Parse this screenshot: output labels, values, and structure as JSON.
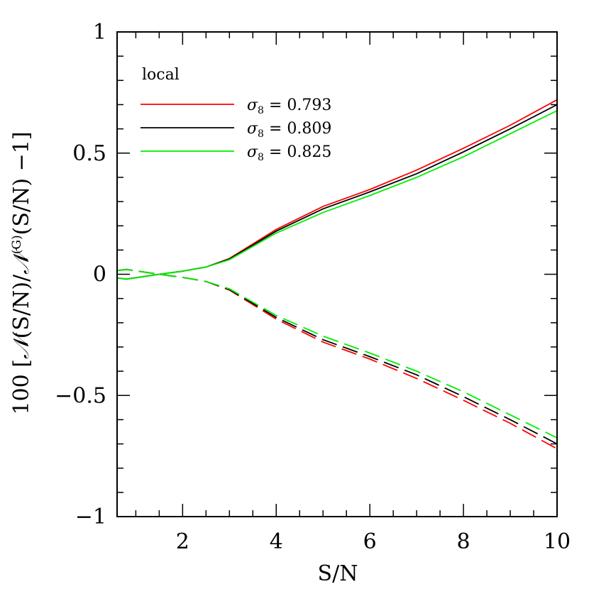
{
  "chart_data": {
    "type": "line",
    "xlabel": "S/N",
    "ylabel": {
      "prefix": "100  [",
      "n1": "𝒩",
      "mid1": "(S/N)/",
      "n2": "𝒩",
      "sup": "(G)",
      "mid2": "(S/N)  −1]"
    },
    "xlim": [
      0.6,
      10
    ],
    "ylim": [
      -1,
      1
    ],
    "x_ticks": [
      2,
      4,
      6,
      8,
      10
    ],
    "x_tick_labels": [
      "2",
      "4",
      "6",
      "8",
      "10"
    ],
    "y_ticks": [
      -1,
      -0.5,
      0,
      0.5,
      1
    ],
    "y_tick_labels": [
      "−1",
      "−0.5",
      "0",
      "0.5",
      "1"
    ],
    "legend": {
      "title": "local",
      "symbol": "σ",
      "subscript": "8",
      "equals": "=",
      "placement": "top-left"
    },
    "series": [
      {
        "name": "0.793",
        "color": "#ff0000",
        "x": [
          0.6,
          0.8,
          1.5,
          2,
          2.5,
          3,
          4,
          5,
          6,
          7,
          8,
          9,
          10
        ],
        "solid": [
          -0.015,
          -0.02,
          0.0,
          0.013,
          0.03,
          0.065,
          0.185,
          0.28,
          0.35,
          0.43,
          0.52,
          0.615,
          0.72
        ],
        "dashed": [
          0.015,
          0.02,
          0.0,
          -0.013,
          -0.03,
          -0.065,
          -0.185,
          -0.28,
          -0.35,
          -0.43,
          -0.52,
          -0.615,
          -0.72
        ]
      },
      {
        "name": "0.809",
        "color": "#000000",
        "x": [
          0.6,
          0.8,
          1.5,
          2,
          2.5,
          3,
          4,
          5,
          6,
          7,
          8,
          9,
          10
        ],
        "solid": [
          -0.015,
          -0.02,
          0.0,
          0.013,
          0.03,
          0.063,
          0.178,
          0.27,
          0.34,
          0.415,
          0.505,
          0.6,
          0.7
        ],
        "dashed": [
          0.015,
          0.02,
          0.0,
          -0.013,
          -0.03,
          -0.063,
          -0.178,
          -0.27,
          -0.34,
          -0.415,
          -0.505,
          -0.6,
          -0.7
        ]
      },
      {
        "name": "0.825",
        "color": "#00ee00",
        "x": [
          0.6,
          0.8,
          1.5,
          2,
          2.5,
          3,
          4,
          5,
          6,
          7,
          8,
          9,
          10
        ],
        "solid": [
          -0.015,
          -0.02,
          0.0,
          0.013,
          0.03,
          0.06,
          0.17,
          0.255,
          0.325,
          0.4,
          0.485,
          0.58,
          0.675
        ],
        "dashed": [
          0.015,
          0.02,
          0.0,
          -0.013,
          -0.03,
          -0.06,
          -0.17,
          -0.255,
          -0.325,
          -0.4,
          -0.485,
          -0.58,
          -0.675
        ]
      }
    ]
  }
}
